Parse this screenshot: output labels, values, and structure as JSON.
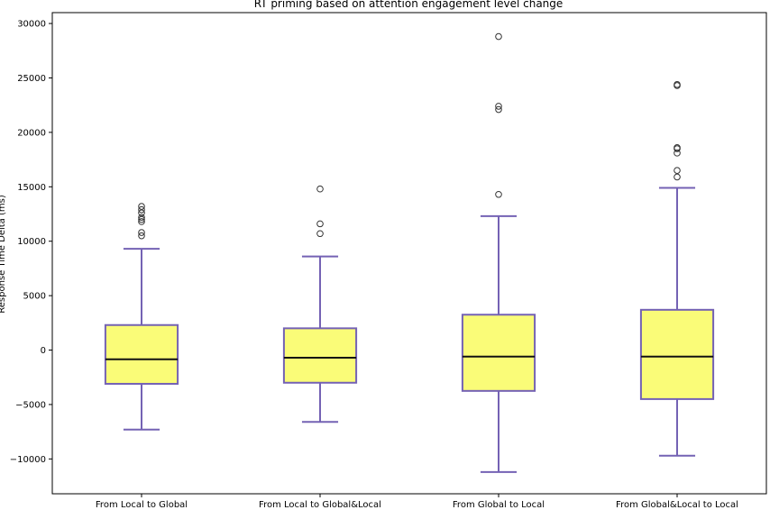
{
  "chart_data": {
    "type": "box",
    "title": "RT priming based on attention engagement level change",
    "xlabel": "",
    "ylabel": "Response Time Delta (ms)",
    "ylim": [
      -13200,
      31000
    ],
    "yticks": [
      -10000,
      -5000,
      0,
      5000,
      10000,
      15000,
      20000,
      25000,
      30000
    ],
    "ytick_labels": [
      "−10000",
      "−5000",
      "0",
      "5000",
      "10000",
      "15000",
      "20000",
      "25000",
      "30000"
    ],
    "grid": false,
    "categories": [
      "From Local to Global",
      "From Local to Global&Local",
      "From Global to Local",
      "From Global&Local to Local"
    ],
    "boxes": [
      {
        "whisker_low": -7300,
        "q1": -3100,
        "median": -850,
        "q3": 2300,
        "whisker_high": 9300,
        "outliers": [
          10500,
          10800,
          11800,
          12000,
          12200,
          12600,
          12900,
          13200
        ]
      },
      {
        "whisker_low": -6600,
        "q1": -3000,
        "median": -700,
        "q3": 2000,
        "whisker_high": 8600,
        "outliers": [
          10700,
          11600,
          14800
        ]
      },
      {
        "whisker_low": -11200,
        "q1": -3750,
        "median": -600,
        "q3": 3250,
        "whisker_high": 12300,
        "outliers": [
          14300,
          22100,
          22400,
          28800
        ]
      },
      {
        "whisker_low": -9700,
        "q1": -4500,
        "median": -600,
        "q3": 3700,
        "whisker_high": 14900,
        "outliers": [
          15900,
          16500,
          18100,
          18500,
          18600,
          24300,
          24400
        ]
      }
    ],
    "colors": {
      "box_fill": "#fafc78",
      "box_edge": "#7462b4",
      "median": "#111111",
      "outlier_edge": "#333333"
    }
  }
}
